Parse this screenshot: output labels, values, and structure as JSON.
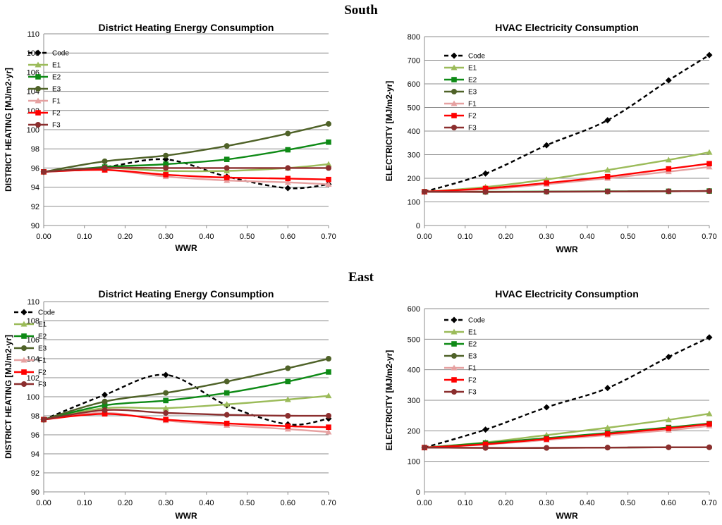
{
  "sections": {
    "south": "South",
    "east": "East"
  },
  "chart_data": [
    {
      "section": "South",
      "type": "line",
      "title": "District Heating Energy Consumption",
      "xlabel": "WWR",
      "ylabel": "DISTRICT HEATING [MJ/m2-yr]",
      "x": [
        0.0,
        0.15,
        0.3,
        0.45,
        0.6,
        0.7
      ],
      "xlim": [
        0,
        0.7
      ],
      "xstep": 0.1,
      "ylim": [
        90,
        110
      ],
      "ystep": 2,
      "grid": true,
      "legend": "top-left",
      "series": [
        {
          "name": "Code",
          "values": [
            95.6,
            96.1,
            96.9,
            95.1,
            93.9,
            94.3
          ],
          "color": "#000000",
          "marker": "diamond",
          "dash": true
        },
        {
          "name": "E1",
          "values": [
            95.6,
            96.0,
            95.7,
            95.7,
            96.0,
            96.4
          ],
          "color": "#9BBB59",
          "marker": "triangle",
          "dash": false
        },
        {
          "name": "E2",
          "values": [
            95.6,
            96.1,
            96.4,
            96.9,
            97.9,
            98.7
          ],
          "color": "#0E8A16",
          "marker": "square",
          "dash": false
        },
        {
          "name": "E3",
          "values": [
            95.6,
            96.7,
            97.3,
            98.3,
            99.6,
            100.6
          ],
          "color": "#4F6228",
          "marker": "circle",
          "dash": false
        },
        {
          "name": "F1",
          "values": [
            95.6,
            95.8,
            95.1,
            94.7,
            94.5,
            94.3
          ],
          "color": "#E6A1A1",
          "marker": "triangle",
          "dash": false
        },
        {
          "name": "F2",
          "values": [
            95.6,
            95.8,
            95.3,
            95.0,
            94.9,
            94.8
          ],
          "color": "#FF0000",
          "marker": "square",
          "dash": false
        },
        {
          "name": "F3",
          "values": [
            95.6,
            96.0,
            96.0,
            96.0,
            96.0,
            96.0
          ],
          "color": "#8B2E2E",
          "marker": "circle",
          "dash": false
        }
      ]
    },
    {
      "section": "South",
      "type": "line",
      "title": "HVAC Electricity Consumption",
      "xlabel": "WWR",
      "ylabel": "ELECTRICITY [MJ/m2-yr]",
      "x": [
        0.0,
        0.15,
        0.3,
        0.45,
        0.6,
        0.7
      ],
      "xlim": [
        0,
        0.7
      ],
      "xstep": 0.1,
      "ylim": [
        0,
        800
      ],
      "ystep": 100,
      "grid": true,
      "legend": "top-left",
      "series": [
        {
          "name": "Code",
          "values": [
            143,
            220,
            340,
            446,
            615,
            722
          ],
          "color": "#000000",
          "marker": "diamond",
          "dash": true
        },
        {
          "name": "E1",
          "values": [
            143,
            163,
            195,
            235,
            278,
            310
          ],
          "color": "#9BBB59",
          "marker": "triangle",
          "dash": false
        },
        {
          "name": "E2",
          "values": [
            143,
            143,
            144,
            145,
            145,
            146
          ],
          "color": "#0E8A16",
          "marker": "square",
          "dash": false
        },
        {
          "name": "E3",
          "values": [
            143,
            142,
            143,
            144,
            145,
            146
          ],
          "color": "#4F6228",
          "marker": "circle",
          "dash": false
        },
        {
          "name": "F1",
          "values": [
            143,
            153,
            175,
            200,
            228,
            248
          ],
          "color": "#E6A1A1",
          "marker": "triangle",
          "dash": false
        },
        {
          "name": "F2",
          "values": [
            143,
            157,
            180,
            207,
            240,
            262
          ],
          "color": "#FF0000",
          "marker": "square",
          "dash": false
        },
        {
          "name": "F3",
          "values": [
            143,
            142,
            143,
            144,
            145,
            146
          ],
          "color": "#8B2E2E",
          "marker": "circle",
          "dash": false
        }
      ]
    },
    {
      "section": "East",
      "type": "line",
      "title": "District Heating Energy Consumption",
      "xlabel": "WWR",
      "ylabel": "DISTRICT HEATING [MJ/m2-yr]",
      "x": [
        0.0,
        0.15,
        0.3,
        0.45,
        0.6,
        0.7
      ],
      "xlim": [
        0,
        0.7
      ],
      "xstep": 0.1,
      "ylim": [
        90,
        110
      ],
      "ystep": 2,
      "grid": true,
      "legend": "top-left",
      "series": [
        {
          "name": "Code",
          "values": [
            97.6,
            100.2,
            102.3,
            99.1,
            97.1,
            97.7
          ],
          "color": "#000000",
          "marker": "diamond",
          "dash": true
        },
        {
          "name": "E1",
          "values": [
            97.6,
            98.8,
            98.8,
            99.2,
            99.7,
            100.1
          ],
          "color": "#9BBB59",
          "marker": "triangle",
          "dash": false
        },
        {
          "name": "E2",
          "values": [
            97.6,
            99.1,
            99.6,
            100.4,
            101.6,
            102.6
          ],
          "color": "#0E8A16",
          "marker": "square",
          "dash": false
        },
        {
          "name": "E3",
          "values": [
            97.6,
            99.5,
            100.4,
            101.6,
            103.0,
            104.0
          ],
          "color": "#4F6228",
          "marker": "circle",
          "dash": false
        },
        {
          "name": "F1",
          "values": [
            97.6,
            98.3,
            97.5,
            97.0,
            96.6,
            96.3
          ],
          "color": "#E6A1A1",
          "marker": "triangle",
          "dash": false
        },
        {
          "name": "F2",
          "values": [
            97.6,
            98.2,
            97.6,
            97.2,
            96.9,
            96.8
          ],
          "color": "#FF0000",
          "marker": "square",
          "dash": false
        },
        {
          "name": "F3",
          "values": [
            97.6,
            98.6,
            98.3,
            98.1,
            98.0,
            98.0
          ],
          "color": "#8B2E2E",
          "marker": "circle",
          "dash": false
        }
      ]
    },
    {
      "section": "East",
      "type": "line",
      "title": "HVAC Electricity Consumption",
      "xlabel": "WWR",
      "ylabel": "ELECTRICITY [MJ/m2-yr]",
      "x": [
        0.0,
        0.15,
        0.3,
        0.45,
        0.6,
        0.7
      ],
      "xlim": [
        0,
        0.7
      ],
      "xstep": 0.1,
      "ylim": [
        0,
        600
      ],
      "ystep": 100,
      "grid": true,
      "legend": "top-left",
      "series": [
        {
          "name": "Code",
          "values": [
            145,
            204,
            277,
            340,
            442,
            506
          ],
          "color": "#000000",
          "marker": "diamond",
          "dash": true
        },
        {
          "name": "E1",
          "values": [
            145,
            162,
            186,
            210,
            236,
            256
          ],
          "color": "#9BBB59",
          "marker": "triangle",
          "dash": false
        },
        {
          "name": "E2",
          "values": [
            145,
            160,
            176,
            193,
            211,
            224
          ],
          "color": "#0E8A16",
          "marker": "square",
          "dash": false
        },
        {
          "name": "E3",
          "values": [
            145,
            144,
            144,
            145,
            146,
            146
          ],
          "color": "#4F6228",
          "marker": "circle",
          "dash": false
        },
        {
          "name": "F1",
          "values": [
            145,
            155,
            170,
            186,
            202,
            216
          ],
          "color": "#E6A1A1",
          "marker": "triangle",
          "dash": false
        },
        {
          "name": "F2",
          "values": [
            145,
            156,
            173,
            190,
            208,
            222
          ],
          "color": "#FF0000",
          "marker": "square",
          "dash": false
        },
        {
          "name": "F3",
          "values": [
            145,
            144,
            144,
            145,
            146,
            146
          ],
          "color": "#8B2E2E",
          "marker": "circle",
          "dash": false
        }
      ]
    }
  ]
}
